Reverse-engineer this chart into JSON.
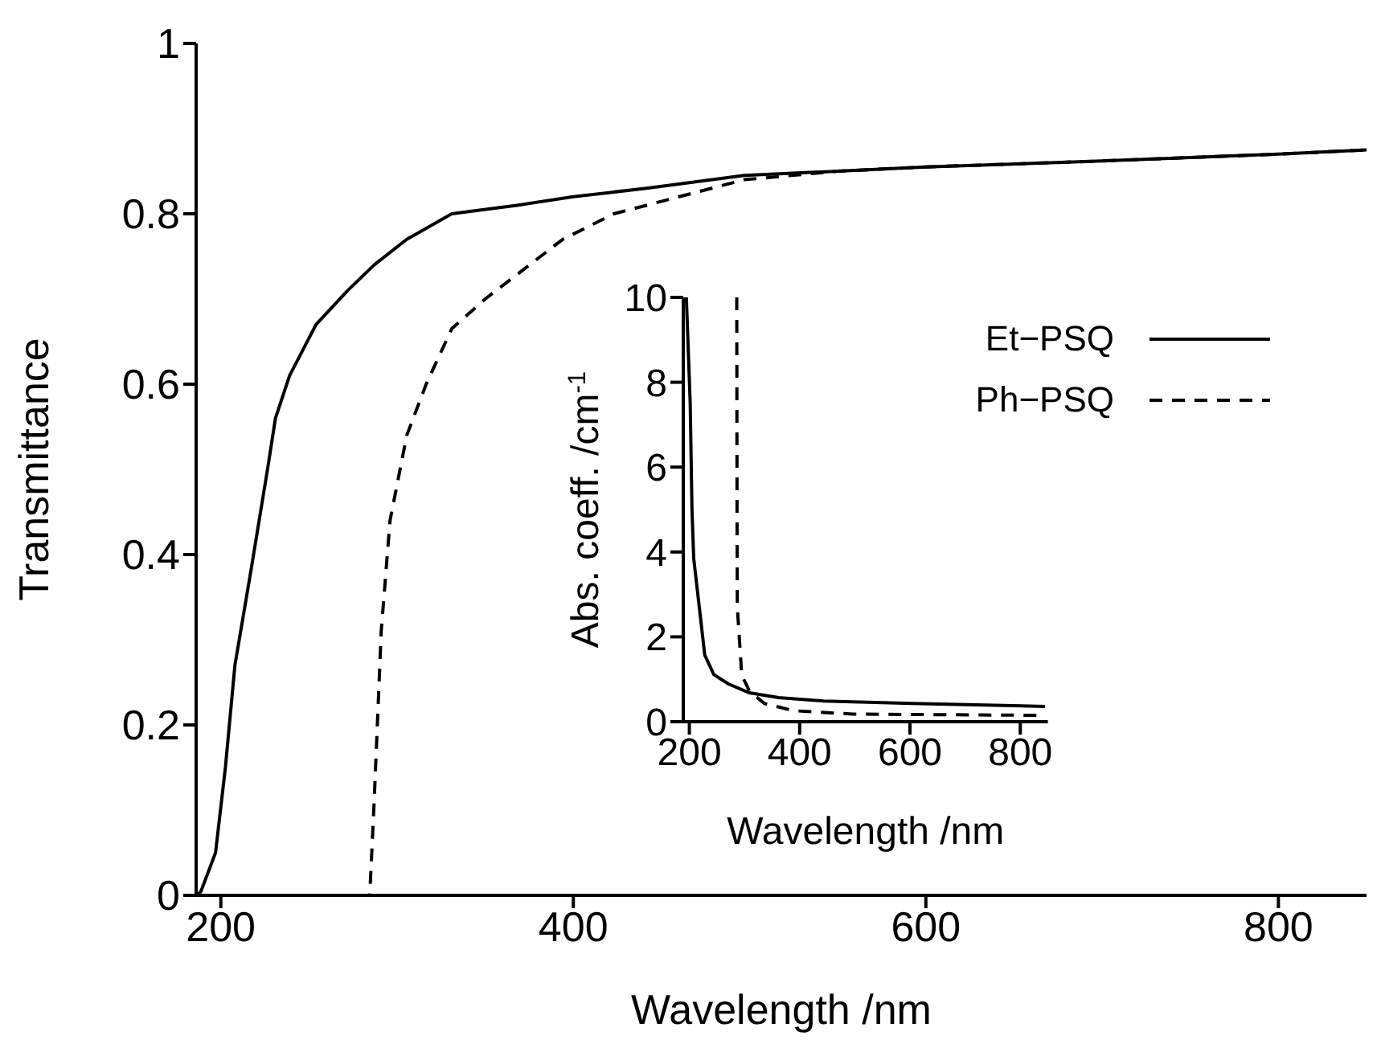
{
  "chart_data": [
    {
      "type": "line",
      "xlabel": "Wavelength /nm",
      "ylabel": "Transmittance",
      "xlim": [
        186,
        850
      ],
      "xticks": [
        200,
        400,
        600,
        800
      ],
      "ylim": [
        0,
        1
      ],
      "yticks": [
        0,
        0.2,
        0.4,
        0.6,
        0.8,
        1
      ],
      "grid": false,
      "legend": false,
      "marker": "none",
      "series": [
        {
          "color": "#000000",
          "line_style": "solid",
          "x": [
            186,
            188.6,
            197,
            202.6,
            208,
            217,
            226.5,
            231,
            239,
            254,
            272,
            287,
            305.5,
            331,
            368,
            400,
            441.5,
            497,
            550,
            600,
            700,
            800,
            850
          ],
          "values": [
            0,
            0.004,
            0.05,
            0.15,
            0.27,
            0.38,
            0.5,
            0.56,
            0.61,
            0.67,
            0.71,
            0.74,
            0.77,
            0.8,
            0.81,
            0.82,
            0.83,
            0.845,
            0.85,
            0.855,
            0.862,
            0.87,
            0.875
          ]
        },
        {
          "color": "#000000",
          "line_style": "dashed",
          "x": [
            240,
            284.5,
            287,
            291,
            296,
            305.5,
            316.5,
            331,
            350,
            372,
            394,
            423,
            460,
            497,
            550,
            600,
            700,
            800,
            850
          ],
          "values": [
            0,
            0,
            0.11,
            0.31,
            0.44,
            0.54,
            0.6,
            0.665,
            0.7,
            0.735,
            0.77,
            0.8,
            0.82,
            0.84,
            0.85,
            0.855,
            0.862,
            0.87,
            0.875
          ]
        }
      ]
    },
    {
      "type": "line",
      "xlabel": "Wavelength /nm",
      "ylabel": "Abs. coeff. /cm$^{-1}$",
      "xlim": [
        189,
        850
      ],
      "xticks": [
        200,
        400,
        600,
        800
      ],
      "ylim": [
        0,
        10
      ],
      "yticks": [
        0,
        2,
        4,
        6,
        8,
        10
      ],
      "grid": false,
      "legend": "top right",
      "marker": "none",
      "series": [
        {
          "name": "Et−PSQ",
          "color": "#000000",
          "line_style": "solid",
          "x": [
            194.6,
            196,
            201.6,
            204.8,
            208,
            228,
            244.5,
            271,
            309,
            362,
            443,
            604,
            845
          ],
          "values": [
            10,
            9.5,
            7.5,
            5,
            3.84,
            1.57,
            1.11,
            0.89,
            0.68,
            0.57,
            0.49,
            0.43,
            0.36
          ]
        },
        {
          "name": "Ph−PSQ",
          "color": "#000000",
          "line_style": "dashed",
          "x": [
            286,
            286.5,
            287,
            295,
            309,
            336,
            389,
            496,
            845
          ],
          "values": [
            10,
            5,
            2.7,
            1.1,
            0.72,
            0.43,
            0.26,
            0.18,
            0.15
          ]
        }
      ]
    }
  ]
}
